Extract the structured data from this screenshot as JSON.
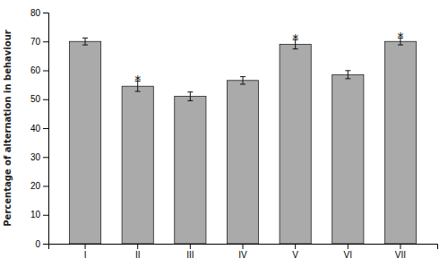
{
  "chart_data": {
    "type": "bar",
    "categories": [
      "I",
      "II",
      "III",
      "IV",
      "V",
      "VI",
      "VII"
    ],
    "values": [
      70.0,
      54.5,
      51.0,
      56.5,
      69.0,
      58.5,
      70.0
    ],
    "errors": [
      1.2,
      1.8,
      1.5,
      1.3,
      1.6,
      1.4,
      1.2
    ],
    "color": "#aaaaaa",
    "ylabel": "Percentage of alternation in behaviour",
    "ylim": [
      0,
      80
    ],
    "yticks": [
      0,
      10,
      20,
      30,
      40,
      50,
      60,
      70,
      80
    ],
    "annotations": [
      {
        "text": "*",
        "x": "II"
      },
      {
        "text": "*",
        "x": "V"
      },
      {
        "text": "*",
        "x": "VII"
      }
    ],
    "grid": false
  }
}
